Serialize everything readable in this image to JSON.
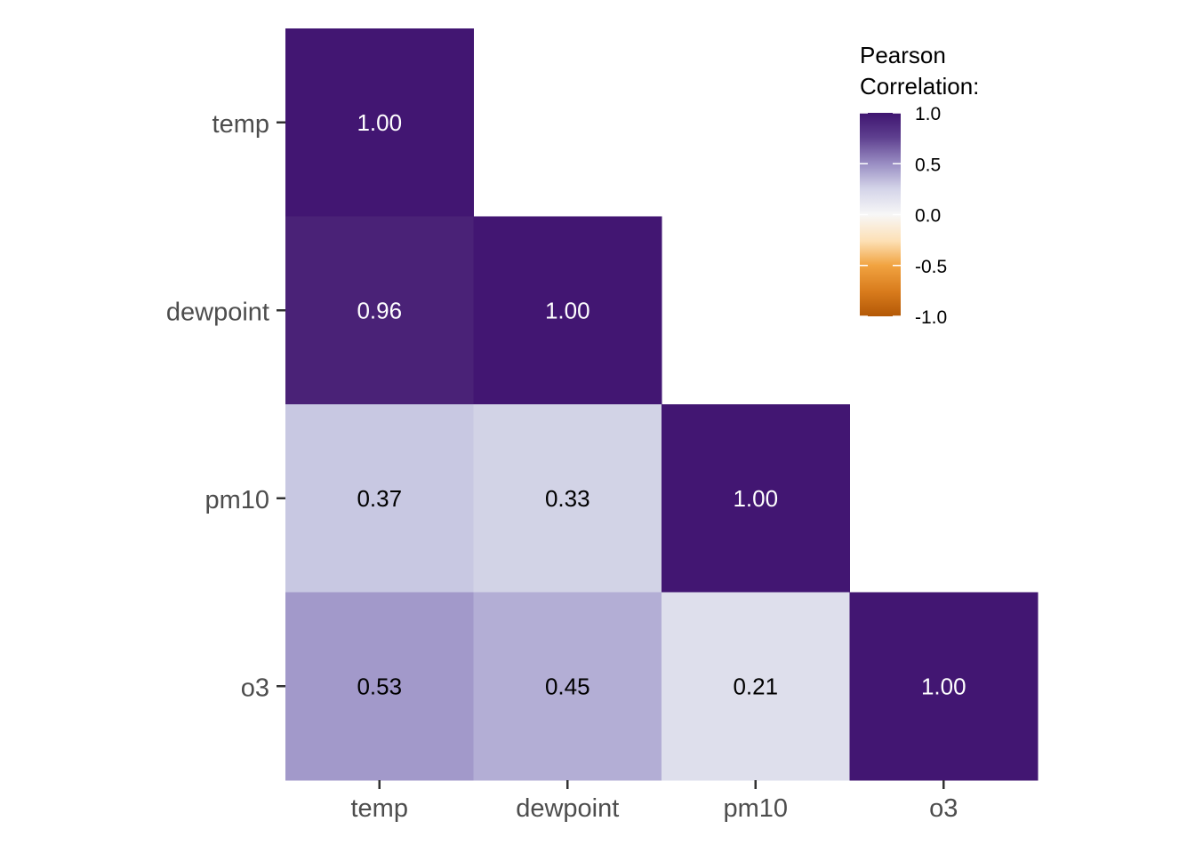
{
  "chart_data": {
    "type": "heatmap",
    "title": "",
    "xlabel": "",
    "ylabel": "",
    "variables": [
      "temp",
      "dewpoint",
      "pm10",
      "o3"
    ],
    "x_tick_labels": [
      "temp",
      "dewpoint",
      "pm10",
      "o3"
    ],
    "y_tick_labels": [
      "temp",
      "dewpoint",
      "pm10",
      "o3"
    ],
    "matrix_shape": "lower-triangle",
    "cells": [
      {
        "row": "temp",
        "col": "temp",
        "value": 1.0,
        "label": "1.00"
      },
      {
        "row": "dewpoint",
        "col": "temp",
        "value": 0.96,
        "label": "0.96"
      },
      {
        "row": "dewpoint",
        "col": "dewpoint",
        "value": 1.0,
        "label": "1.00"
      },
      {
        "row": "pm10",
        "col": "temp",
        "value": 0.37,
        "label": "0.37"
      },
      {
        "row": "pm10",
        "col": "dewpoint",
        "value": 0.33,
        "label": "0.33"
      },
      {
        "row": "pm10",
        "col": "pm10",
        "value": 1.0,
        "label": "1.00"
      },
      {
        "row": "o3",
        "col": "temp",
        "value": 0.53,
        "label": "0.53"
      },
      {
        "row": "o3",
        "col": "dewpoint",
        "value": 0.45,
        "label": "0.45"
      },
      {
        "row": "o3",
        "col": "pm10",
        "value": 0.21,
        "label": "0.21"
      },
      {
        "row": "o3",
        "col": "o3",
        "value": 1.0,
        "label": "1.00"
      }
    ],
    "legend": {
      "title_lines": [
        "Pearson",
        "Correlation:"
      ],
      "placement": "top-right",
      "range": [
        -1.0,
        1.0
      ],
      "ticks": [
        1.0,
        0.5,
        0.0,
        -0.5,
        -1.0
      ],
      "tick_labels": [
        "1.0",
        "0.5",
        "0.0",
        "-0.5",
        "-1.0"
      ]
    },
    "color_scale": {
      "low": "#b35806",
      "mid_low": "#f1a340",
      "mid": "#f7f7f7",
      "mid_high": "#998ec3",
      "high": "#3f1570"
    },
    "cell_colors": {
      "1.00": "#421672",
      "0.96": "#4a2277",
      "0.53": "#a299ca",
      "0.45": "#b3aed5",
      "0.37": "#c8c8e2",
      "0.33": "#d2d3e6",
      "0.21": "#dedfec"
    },
    "text_colors": {
      "dark_bg": "#ffffff",
      "light_bg": "#000000"
    }
  }
}
